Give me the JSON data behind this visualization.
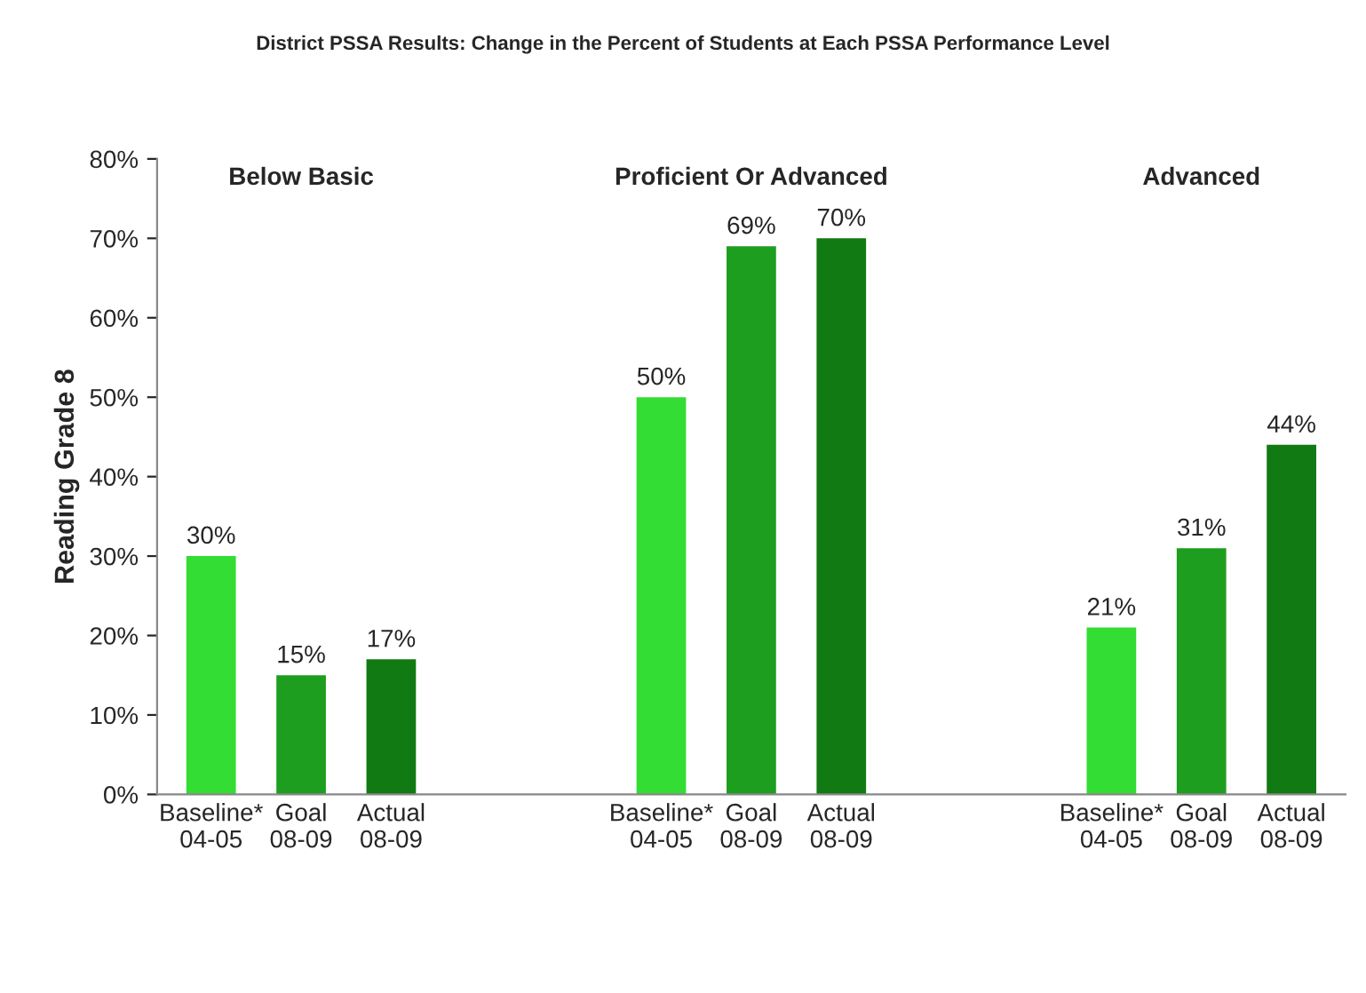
{
  "chart_data": {
    "type": "bar",
    "title": "District PSSA Results: Change in the Percent of Students at Each PSSA Performance Level",
    "ylabel": "Reading Grade 8",
    "categories": [
      "Baseline*\n04-05",
      "Goal\n08-09",
      "Actual\n08-09",
      null,
      null,
      "Baseline*\n04-05",
      "Goal\n08-09",
      "Actual\n08-09",
      null,
      null,
      "Baseline*\n04-05",
      "Goal\n08-09",
      "Actual\n08-09"
    ],
    "values": [
      30,
      15,
      17,
      null,
      null,
      50,
      69,
      70,
      null,
      null,
      21,
      31,
      44
    ],
    "value_labels": [
      "30%",
      "15%",
      "17%",
      null,
      null,
      "50%",
      "69%",
      "70%",
      null,
      null,
      "21%",
      "31%",
      "44%"
    ],
    "colors": [
      "#33dd33",
      "#1e9e1e",
      "#127a12",
      null,
      null,
      "#33dd33",
      "#1e9e1e",
      "#127a12",
      null,
      null,
      "#33dd33",
      "#1e9e1e",
      "#127a12"
    ],
    "annotations": [
      "Below Basic",
      "Proficient Or Advanced",
      "Advanced"
    ],
    "ylim": [
      0,
      80
    ],
    "yticks": [
      {
        "value": 0,
        "label": "0%"
      },
      {
        "value": 10,
        "label": "10%"
      },
      {
        "value": 20,
        "label": "20%"
      },
      {
        "value": 30,
        "label": "30%"
      },
      {
        "value": 40,
        "label": "40%"
      },
      {
        "value": 50,
        "label": "50%"
      },
      {
        "value": 60,
        "label": "60%"
      },
      {
        "value": 70,
        "label": "70%"
      },
      {
        "value": 80,
        "label": "80%"
      }
    ],
    "grid": false,
    "legend": false
  }
}
